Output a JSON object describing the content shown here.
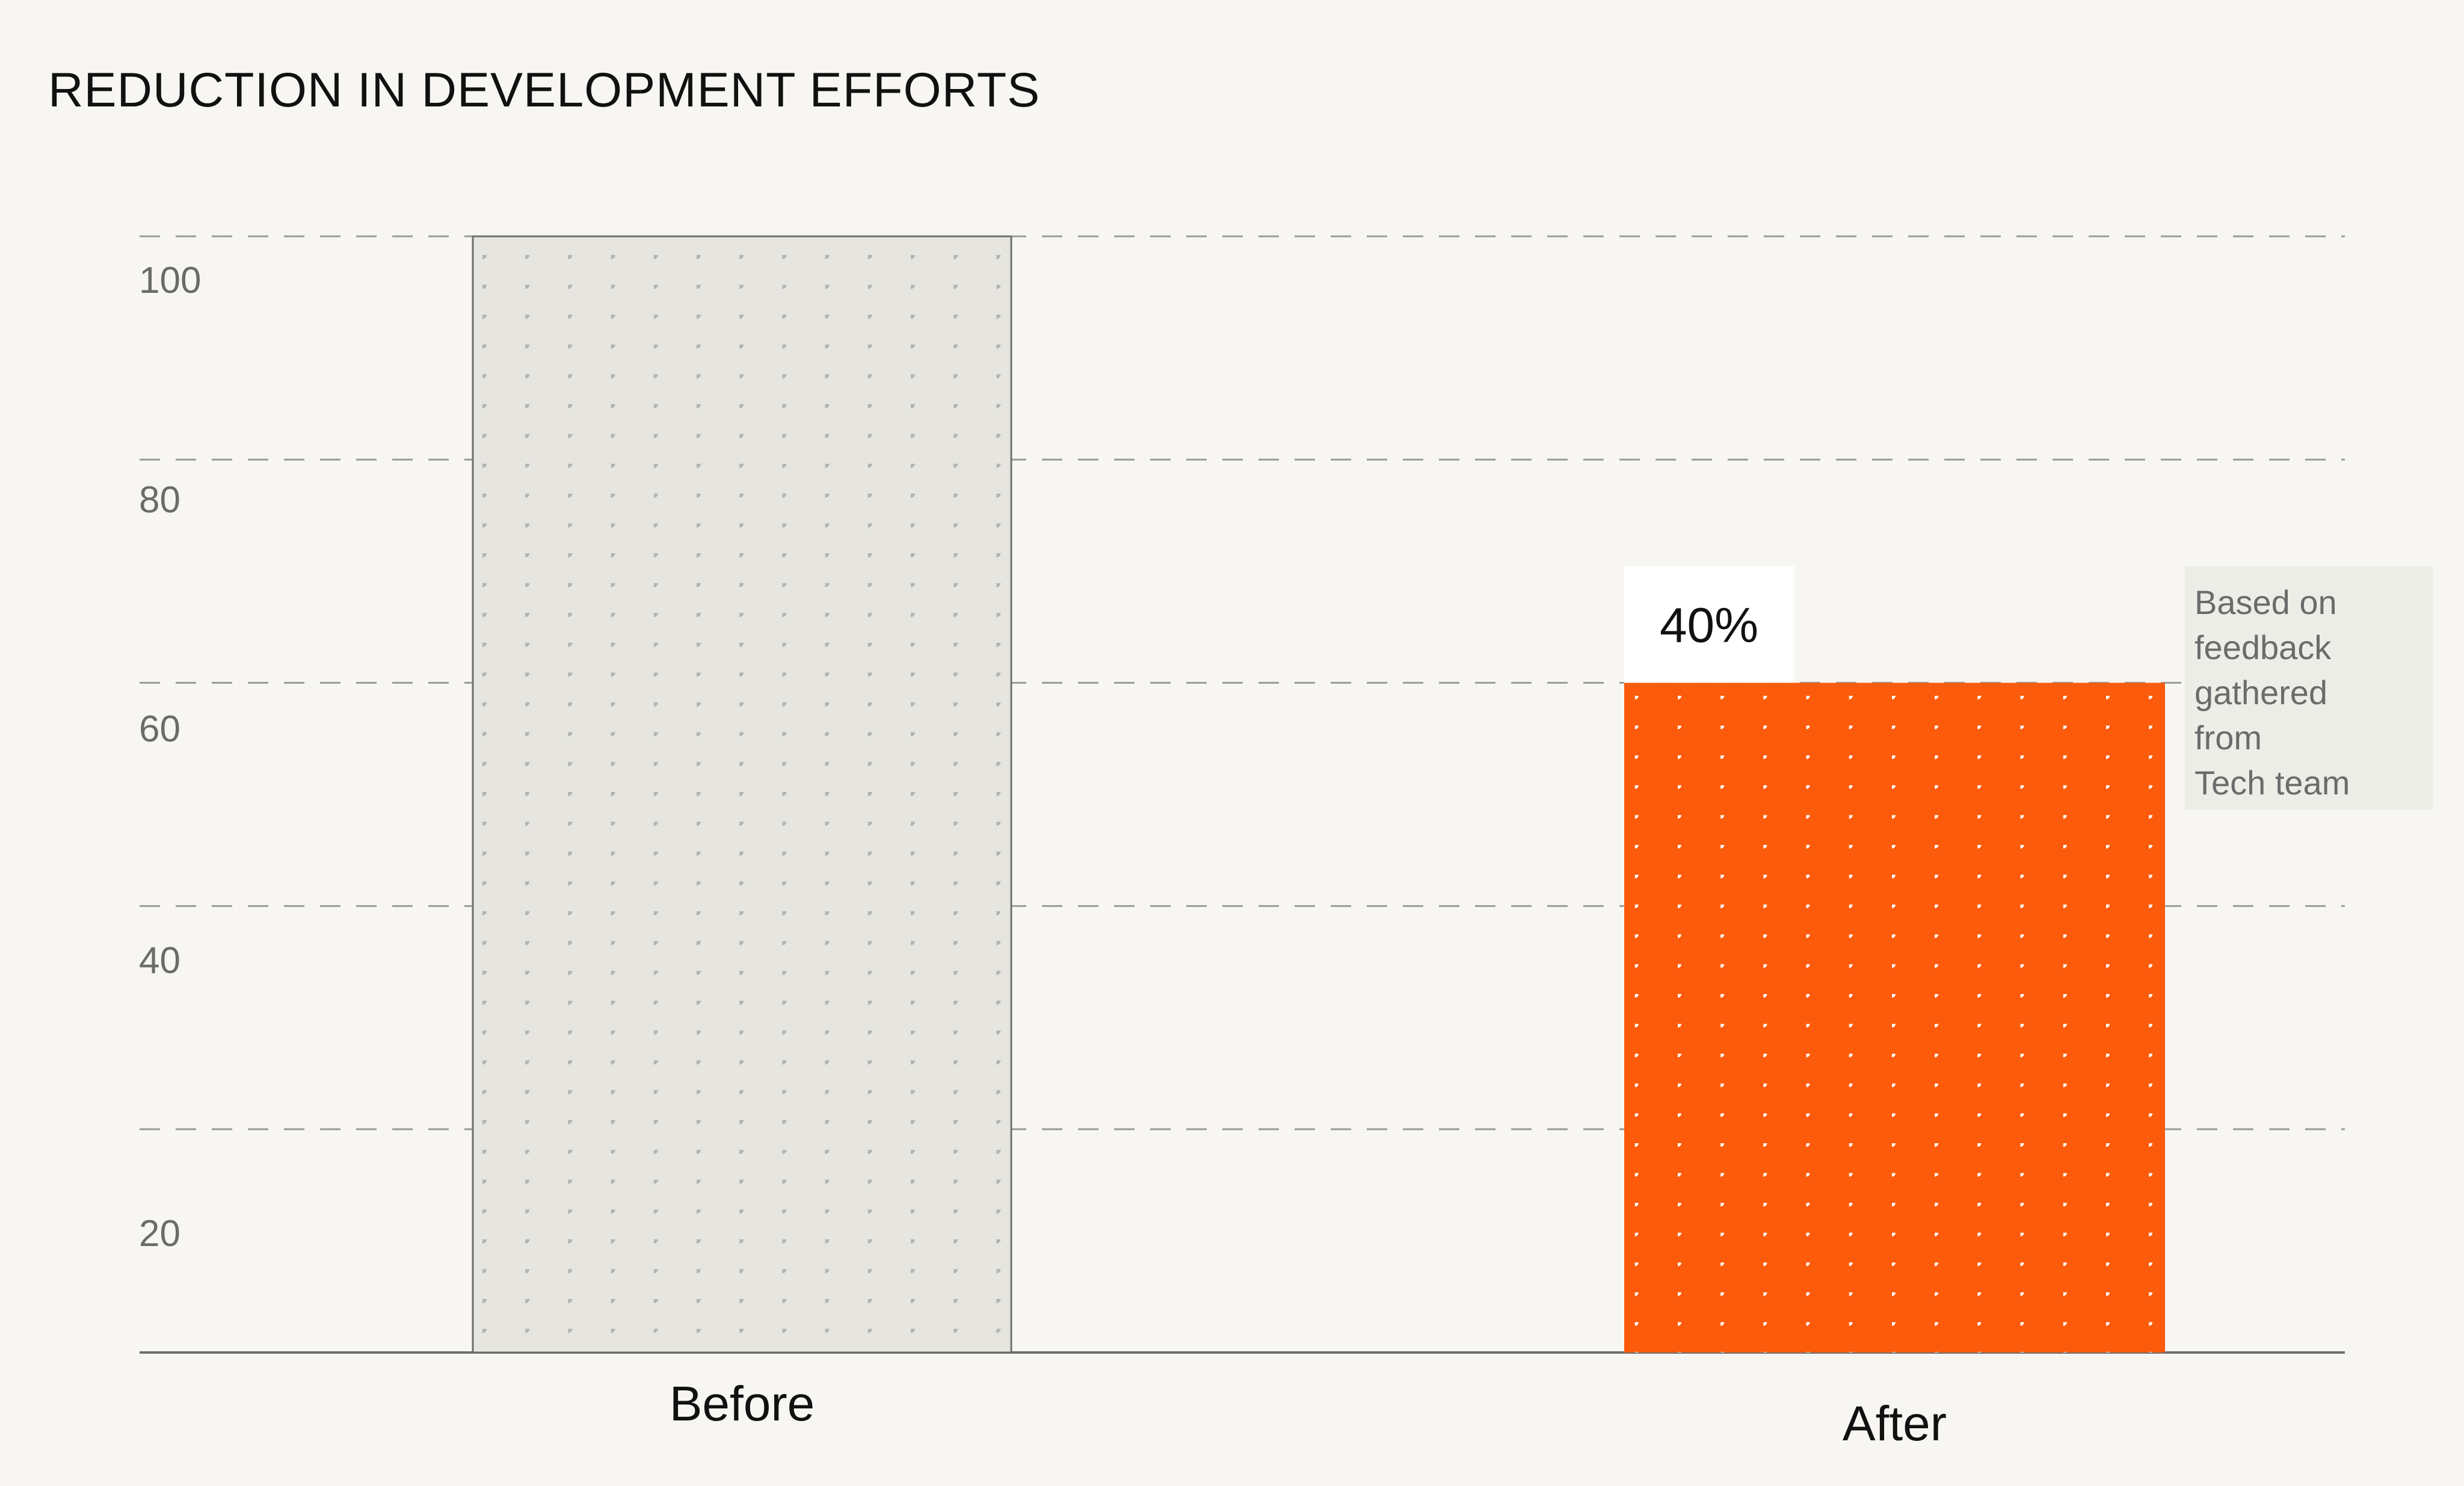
{
  "chart_data": {
    "type": "bar",
    "title": "REDUCTION IN DEVELOPMENT EFFORTS",
    "categories": [
      "Before",
      "After"
    ],
    "values": [
      100,
      60
    ],
    "ylim": [
      0,
      100
    ],
    "yticks": [
      "20",
      "40",
      "60",
      "80",
      "100"
    ],
    "grid": true,
    "bar_colors": [
      "#e6e5df",
      "#fc5b0c"
    ],
    "dot_colors": [
      "#b3b3b0",
      "#ffffff"
    ],
    "data_label": {
      "text": "40%",
      "bar": "After"
    },
    "annotation": "Based on\nfeedback\ngathered\nfrom\nTech team"
  }
}
